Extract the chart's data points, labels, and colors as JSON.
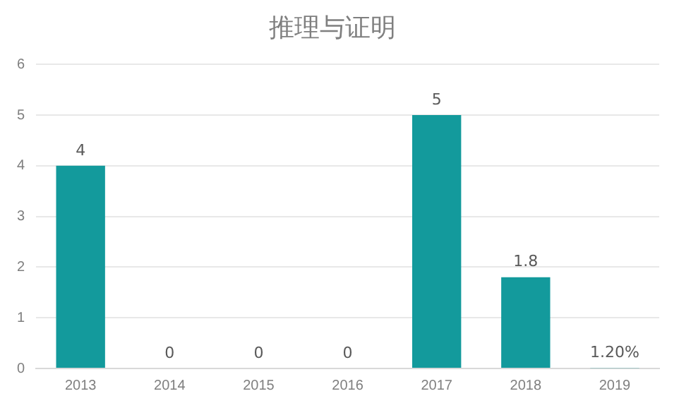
{
  "chart_data": {
    "type": "bar",
    "title": "推理与证明",
    "categories": [
      "2013",
      "2014",
      "2015",
      "2016",
      "2017",
      "2018",
      "2019"
    ],
    "values": [
      4,
      0,
      0,
      0,
      5,
      1.8,
      0.012
    ],
    "value_labels": [
      "4",
      "0",
      "0",
      "0",
      "5",
      "1.8",
      "1.20%"
    ],
    "color": "#139a9c",
    "ylim": [
      0,
      6
    ],
    "yticks": [
      0,
      1,
      2,
      3,
      4,
      5,
      6
    ],
    "grid": "y"
  }
}
